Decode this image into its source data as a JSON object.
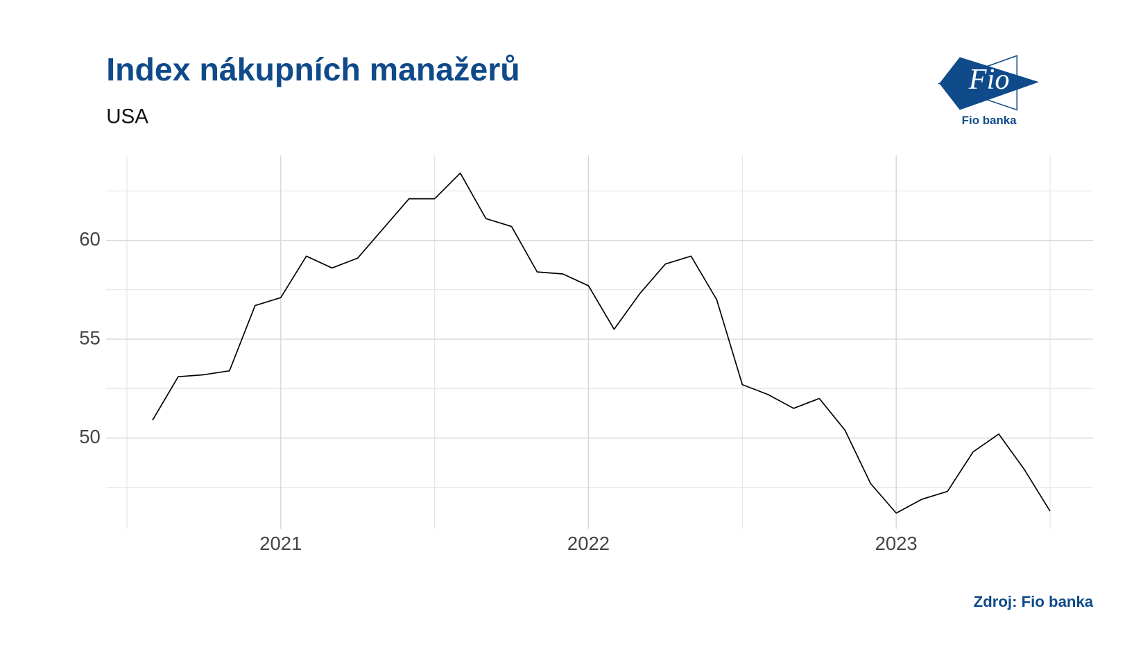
{
  "chart_data": {
    "type": "line",
    "title": "Index nákupních manažerů",
    "subtitle": "USA",
    "source": "Zdroj: Fio banka",
    "x": [
      "2020-08",
      "2020-09",
      "2020-10",
      "2020-11",
      "2020-12",
      "2021-01",
      "2021-02",
      "2021-03",
      "2021-04",
      "2021-05",
      "2021-06",
      "2021-07",
      "2021-08",
      "2021-09",
      "2021-10",
      "2021-11",
      "2021-12",
      "2022-01",
      "2022-02",
      "2022-03",
      "2022-04",
      "2022-05",
      "2022-06",
      "2022-07",
      "2022-08",
      "2022-09",
      "2022-10",
      "2022-11",
      "2022-12",
      "2023-01",
      "2023-02",
      "2023-03",
      "2023-04",
      "2023-05",
      "2023-06",
      "2023-07"
    ],
    "series": [
      {
        "name": "USA",
        "color": "#000000",
        "values": [
          50.9,
          53.1,
          53.2,
          53.4,
          56.7,
          57.1,
          59.2,
          58.6,
          59.1,
          60.6,
          62.1,
          62.1,
          63.4,
          61.1,
          60.7,
          58.4,
          58.3,
          57.7,
          55.5,
          57.3,
          58.8,
          59.2,
          57.0,
          52.7,
          52.2,
          51.5,
          52.0,
          50.4,
          47.7,
          46.2,
          46.9,
          47.3,
          49.3,
          50.2,
          48.4,
          46.3
        ]
      }
    ],
    "xlim": [
      2020.433,
      2023.64
    ],
    "xticks": [
      2021,
      2022,
      2023
    ],
    "ylim": [
      45.4,
      64.3
    ],
    "yticks": [
      50,
      55,
      60
    ],
    "grid": true
  },
  "logo": {
    "text": "Fio",
    "caption": "Fio banka"
  }
}
